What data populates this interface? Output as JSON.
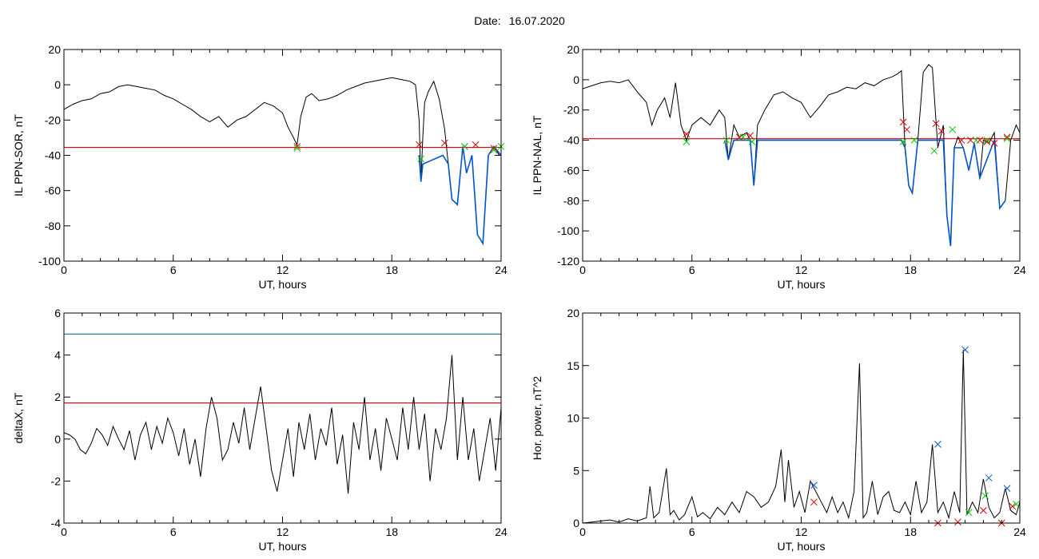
{
  "header": {
    "date_label": "Date:",
    "date_value": "16.07.2020"
  },
  "colors": {
    "data_line": "#000000",
    "threshold": "#e00000",
    "highlight": "#0055cc",
    "upper_threshold": "#00779a",
    "green_mark": "#00c800",
    "red_mark": "#e00000",
    "blue_mark": "#0055cc"
  },
  "chart_data": [
    {
      "id": "il_sor",
      "type": "line",
      "ylabel": "IL PPN-SOR, nT",
      "xlabel": "UT, hours",
      "xlim": [
        0,
        24
      ],
      "ylim": [
        -100,
        20
      ],
      "xticks": [
        "0",
        "6",
        "12",
        "18",
        "24"
      ],
      "yticks": [
        "20",
        "0",
        "-20",
        "-40",
        "-60",
        "-80",
        "-100"
      ],
      "threshold": -35.5,
      "series": [
        {
          "x": [
            0,
            0.5,
            1,
            1.5,
            2,
            2.5,
            3,
            3.5,
            4,
            4.5,
            5,
            5.5,
            6,
            6.5,
            7,
            7.5,
            8,
            8.5,
            9,
            9.5,
            10,
            10.5,
            11,
            11.5,
            12,
            12.3,
            12.6,
            12.8,
            13,
            13.3,
            13.6,
            14,
            14.5,
            15,
            15.5,
            16,
            16.5,
            17,
            17.5,
            18,
            18.5,
            19,
            19.3,
            19.5,
            19.6,
            19.7,
            19.8,
            20,
            20.3,
            20.6,
            20.9,
            21.1,
            21.3,
            21.6,
            21.9,
            22.1,
            22.4,
            22.7,
            23,
            23.3,
            23.6,
            23.9,
            24
          ],
          "y": [
            -14,
            -11,
            -9,
            -8,
            -5,
            -4,
            -1,
            0,
            -1,
            -2,
            -3,
            -6,
            -8,
            -11,
            -14,
            -18,
            -21,
            -18,
            -24,
            -20,
            -18,
            -14,
            -10,
            -12,
            -16,
            -24,
            -30,
            -34,
            -18,
            -7,
            -5,
            -9,
            -8,
            -6,
            -3,
            -1,
            1,
            2,
            3,
            4,
            3,
            2,
            0,
            -20,
            -55,
            -30,
            -10,
            -4,
            2,
            -8,
            -25,
            -45,
            -65,
            -68,
            -35,
            -50,
            -40,
            -85,
            -90,
            -40,
            -35,
            -40,
            -40
          ]
        },
        {
          "name": "highlight",
          "x": [
            19.5,
            19.6,
            19.7,
            20.8,
            21.1,
            21.3,
            21.6,
            21.9,
            22.1,
            22.4,
            22.7,
            23,
            23.3,
            23.6,
            24
          ],
          "y": [
            -40,
            -55,
            -45,
            -40,
            -45,
            -65,
            -68,
            -35,
            -50,
            -40,
            -85,
            -90,
            -40,
            -35,
            -40
          ]
        }
      ],
      "markers": [
        {
          "color": "red",
          "points": [
            [
              12.8,
              -35
            ],
            [
              19.5,
              -34
            ],
            [
              20.9,
              -33
            ],
            [
              22.0,
              -35
            ],
            [
              22.6,
              -34
            ],
            [
              23.6,
              -36
            ]
          ]
        },
        {
          "color": "green",
          "points": [
            [
              12.8,
              -36
            ],
            [
              19.6,
              -42
            ],
            [
              22.0,
              -35
            ],
            [
              23.6,
              -37
            ],
            [
              24,
              -35
            ]
          ]
        }
      ]
    },
    {
      "id": "il_nal",
      "type": "line",
      "ylabel": "IL PPN-NAL, nT",
      "xlabel": "UT, hours",
      "xlim": [
        0,
        24
      ],
      "ylim": [
        -120,
        20
      ],
      "xticks": [
        "0",
        "6",
        "12",
        "18",
        "24"
      ],
      "yticks": [
        "20",
        "0",
        "-20",
        "-40",
        "-60",
        "-80",
        "-100",
        "-120"
      ],
      "threshold": -39,
      "series": [
        {
          "x": [
            0,
            0.5,
            1,
            1.5,
            2,
            2.5,
            3,
            3.5,
            3.8,
            4.1,
            4.5,
            4.8,
            5.1,
            5.4,
            5.7,
            6,
            6.5,
            7,
            7.5,
            7.8,
            8,
            8.3,
            8.6,
            9,
            9.2,
            9.4,
            9.6,
            10,
            10.5,
            11,
            11.5,
            12,
            12.5,
            13,
            13.5,
            14,
            14.5,
            15,
            15.5,
            16,
            16.5,
            17,
            17.3,
            17.5,
            17.7,
            17.9,
            18.1,
            18.4,
            18.7,
            19,
            19.2,
            19.5,
            19.8,
            20,
            20.2,
            20.4,
            20.6,
            20.9,
            21.2,
            21.5,
            21.8,
            22,
            22.3,
            22.6,
            22.9,
            23.2,
            23.5,
            23.8,
            24
          ],
          "y": [
            -6,
            -4,
            -2,
            -1,
            -2,
            0,
            -8,
            -15,
            -30,
            -20,
            -12,
            -25,
            -2,
            -30,
            -40,
            -30,
            -25,
            -30,
            -20,
            -25,
            -53,
            -30,
            -38,
            -35,
            -40,
            -70,
            -30,
            -20,
            -10,
            -8,
            -12,
            -15,
            -25,
            -18,
            -10,
            -8,
            -5,
            -6,
            -2,
            -4,
            0,
            2,
            4,
            6,
            -45,
            -70,
            -75,
            -40,
            5,
            10,
            8,
            -45,
            -30,
            -90,
            -110,
            -45,
            -38,
            -45,
            -60,
            -42,
            -65,
            -40,
            -42,
            -35,
            -85,
            -80,
            -40,
            -30,
            -35
          ]
        },
        {
          "name": "highlight",
          "x": [
            7.8,
            8,
            8.3,
            9.2,
            9.4,
            9.6,
            17.5,
            17.7,
            17.9,
            18.1,
            18.4,
            19.8,
            20,
            20.2,
            20.4,
            20.9,
            21.2,
            21.5,
            21.8,
            22.6,
            22.9,
            23.2
          ],
          "y": [
            -40,
            -53,
            -40,
            -40,
            -70,
            -40,
            -40,
            -45,
            -70,
            -75,
            -40,
            -40,
            -90,
            -110,
            -45,
            -45,
            -60,
            -42,
            -65,
            -40,
            -85,
            -80
          ]
        }
      ],
      "markers": [
        {
          "color": "red",
          "points": [
            [
              5.7,
              -36
            ],
            [
              8.6,
              -38
            ],
            [
              9.2,
              -37
            ],
            [
              17.6,
              -28
            ],
            [
              17.8,
              -33
            ],
            [
              19.4,
              -29
            ],
            [
              19.7,
              -34
            ],
            [
              20.8,
              -40
            ],
            [
              21.3,
              -40
            ],
            [
              21.8,
              -40
            ],
            [
              22.2,
              -41
            ],
            [
              22.6,
              -42
            ],
            [
              23.3,
              -38
            ]
          ]
        },
        {
          "name": "green",
          "color": "green",
          "points": [
            [
              5.7,
              -41
            ],
            [
              7.9,
              -40
            ],
            [
              8.8,
              -38
            ],
            [
              9.3,
              -41
            ],
            [
              17.6,
              -41
            ],
            [
              18.2,
              -40
            ],
            [
              19.3,
              -47
            ],
            [
              20.3,
              -33
            ],
            [
              21.6,
              -40
            ],
            [
              22.2,
              -40
            ],
            [
              23.3,
              -39
            ]
          ]
        }
      ]
    },
    {
      "id": "delta_x",
      "type": "line",
      "ylabel": "deltaX, nT",
      "xlabel": "UT, hours",
      "xlim": [
        0,
        24
      ],
      "ylim": [
        -4,
        6
      ],
      "xticks": [
        "0",
        "6",
        "12",
        "18",
        "24"
      ],
      "yticks": [
        "6",
        "4",
        "2",
        "0",
        "-2",
        "-4"
      ],
      "threshold": 1.72,
      "upper_threshold": 5.0,
      "series": [
        {
          "x": [
            0,
            0.3,
            0.6,
            0.9,
            1.2,
            1.5,
            1.8,
            2.1,
            2.4,
            2.7,
            3,
            3.3,
            3.6,
            3.9,
            4.2,
            4.5,
            4.8,
            5.1,
            5.4,
            5.7,
            6,
            6.3,
            6.6,
            6.9,
            7.2,
            7.5,
            7.8,
            8.1,
            8.4,
            8.7,
            9,
            9.3,
            9.6,
            9.9,
            10.2,
            10.5,
            10.8,
            11.1,
            11.4,
            11.7,
            12,
            12.3,
            12.6,
            12.9,
            13.2,
            13.5,
            13.8,
            14.1,
            14.4,
            14.7,
            15,
            15.3,
            15.6,
            15.9,
            16.2,
            16.5,
            16.8,
            17.1,
            17.4,
            17.7,
            18,
            18.3,
            18.6,
            18.9,
            19.2,
            19.5,
            19.8,
            20.1,
            20.4,
            20.7,
            21,
            21.3,
            21.6,
            21.9,
            22.2,
            22.5,
            22.8,
            23.1,
            23.4,
            23.7,
            24
          ],
          "y": [
            0.3,
            0.2,
            0,
            -0.5,
            -0.7,
            -0.2,
            0.5,
            0.2,
            -0.3,
            0.6,
            0,
            -0.5,
            0.4,
            -1,
            0.2,
            0.8,
            -0.5,
            0.6,
            -0.2,
            1,
            0.3,
            -0.8,
            0.5,
            -1.2,
            0,
            -1.8,
            0.5,
            2,
            1,
            -1,
            -0.5,
            0.8,
            -0.2,
            1.5,
            -0.5,
            1,
            2.5,
            0.5,
            -1.5,
            -2.5,
            -1,
            0.5,
            -1.8,
            0.8,
            -0.5,
            1.2,
            -1,
            0.5,
            -0.3,
            1.5,
            -1.2,
            0.2,
            -2.6,
            0.8,
            -0.5,
            2,
            -1,
            0.5,
            -1.5,
            1,
            0,
            -1,
            1.5,
            -0.5,
            2,
            -0.5,
            1.2,
            -2,
            0.5,
            -0.5,
            1,
            4,
            -1,
            2,
            -1,
            0.5,
            -2,
            -0.5,
            1,
            -1.5,
            1.5
          ]
        }
      ]
    },
    {
      "id": "hor_power",
      "type": "line",
      "ylabel": "Hor. power, nT^2",
      "xlabel": "UT, hours",
      "xlim": [
        0,
        24
      ],
      "ylim": [
        0,
        20
      ],
      "xticks": [
        "0",
        "6",
        "12",
        "18",
        "24"
      ],
      "yticks": [
        "20",
        "15",
        "10",
        "5",
        "0"
      ],
      "series": [
        {
          "x": [
            0,
            0.5,
            1,
            1.5,
            2,
            2.5,
            3,
            3.5,
            3.7,
            3.9,
            4.2,
            4.6,
            4.8,
            5,
            5.3,
            5.6,
            6,
            6.3,
            6.6,
            7,
            7.4,
            7.8,
            8.2,
            8.6,
            9,
            9.4,
            9.8,
            10.2,
            10.6,
            10.9,
            11.1,
            11.3,
            11.6,
            11.9,
            12.2,
            12.5,
            12.8,
            13.1,
            13.4,
            13.7,
            14,
            14.3,
            14.6,
            14.9,
            15.2,
            15.4,
            15.6,
            15.9,
            16.2,
            16.5,
            16.8,
            17.1,
            17.4,
            17.7,
            18,
            18.3,
            18.6,
            18.9,
            19.2,
            19.5,
            19.8,
            20.1,
            20.4,
            20.7,
            20.9,
            21.1,
            21.4,
            21.7,
            22,
            22.3,
            22.6,
            22.9,
            23.2,
            23.5,
            23.8,
            24
          ],
          "y": [
            0,
            0.1,
            0.2,
            0.3,
            0.1,
            0.4,
            0.2,
            0.5,
            3.5,
            0.5,
            1,
            5.2,
            0.8,
            1.2,
            0.3,
            0.8,
            2.5,
            0.6,
            1,
            0.4,
            1.5,
            0.8,
            2,
            1,
            3,
            2.5,
            1.5,
            2,
            3.5,
            7,
            2,
            6,
            1.5,
            3,
            1,
            4,
            3,
            2,
            1,
            2.5,
            1,
            2,
            0.5,
            3,
            15.2,
            0.5,
            1,
            4,
            0.8,
            2.5,
            3,
            1.2,
            1,
            2,
            0.8,
            4,
            1,
            2,
            7.5,
            1,
            2,
            0.5,
            3,
            1,
            16.5,
            0.8,
            2,
            1,
            4.2,
            1.5,
            0.5,
            1,
            3.3,
            1.2,
            0.8,
            2
          ]
        }
      ],
      "markers": [
        {
          "color": "blue",
          "points": [
            [
              12.7,
              3.6
            ],
            [
              19.5,
              7.5
            ],
            [
              21.0,
              16.5
            ],
            [
              22.3,
              4.3
            ],
            [
              23.3,
              3.3
            ]
          ]
        },
        {
          "color": "red",
          "points": [
            [
              12.7,
              2.0
            ],
            [
              19.5,
              0
            ],
            [
              20.6,
              0.1
            ],
            [
              22.0,
              1.2
            ],
            [
              23.0,
              0
            ],
            [
              23.6,
              1.6
            ]
          ]
        },
        {
          "color": "green",
          "points": [
            [
              21.2,
              1.0
            ],
            [
              22.1,
              2.6
            ],
            [
              23.8,
              1.8
            ]
          ]
        }
      ]
    }
  ]
}
